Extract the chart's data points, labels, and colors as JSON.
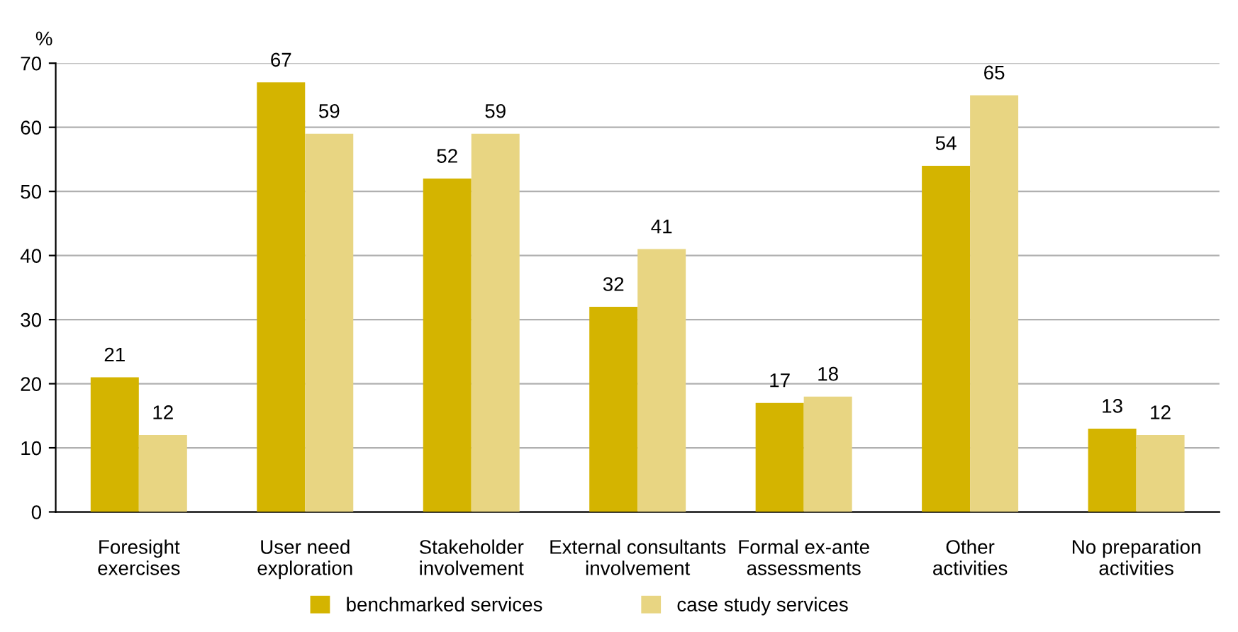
{
  "chart_data": {
    "type": "bar",
    "ylabel": "%",
    "categories": [
      "Foresight\nexercises",
      "User need\nexploration",
      "Stakeholder\ninvolvement",
      "External consultants\ninvolvement",
      "Formal ex-ante\nassessments",
      "Other\nactivities",
      "No preparation\nactivities"
    ],
    "series": [
      {
        "name": "benchmarked services",
        "color": "#d4b400",
        "values": [
          21,
          67,
          52,
          32,
          17,
          54,
          13
        ]
      },
      {
        "name": "case study services",
        "color": "#e8d582",
        "values": [
          12,
          59,
          59,
          41,
          18,
          65,
          12
        ]
      }
    ],
    "ylim": [
      0,
      70
    ],
    "yticks": [
      0,
      10,
      20,
      30,
      40,
      50,
      60,
      70
    ],
    "grid": "y",
    "legend": "bottom",
    "data_labels": true
  }
}
